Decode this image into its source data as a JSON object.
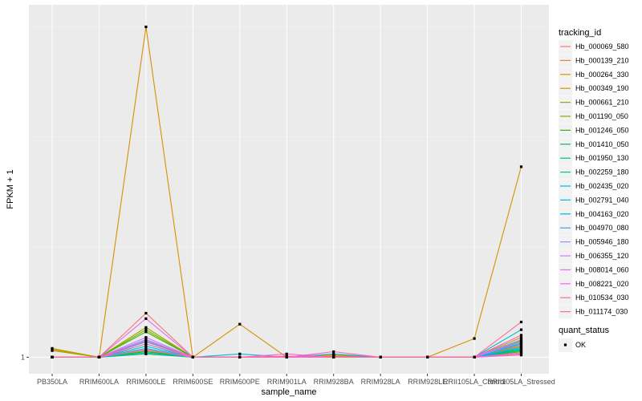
{
  "chart_data": {
    "type": "line",
    "xlabel": "sample_name",
    "ylabel": "FPKM + 1",
    "y_tick_labels": [
      "1"
    ],
    "categories": [
      "PB350LA",
      "RRIM600LA",
      "RRIM600LE",
      "RRIM600SE",
      "RRIM600PE",
      "RRIM901LA",
      "RRIM928BA",
      "RRIM928LA",
      "RRIM928LE",
      "RRII105LA_Control",
      "RRII105LA_Stressed"
    ],
    "legend": {
      "position": "right",
      "color_title": "tracking_id",
      "shape_title": "quant_status",
      "shape_entries": [
        "OK"
      ]
    },
    "series": [
      {
        "name": "Hb_000069_580",
        "color": "#F8766D",
        "values": [
          1.0,
          1.0,
          1.4,
          1.0,
          1.0,
          1.0,
          1.02,
          1.0,
          1.0,
          1.0,
          1.11
        ]
      },
      {
        "name": "Hb_000139_210",
        "color": "#EA8331",
        "values": [
          1.0,
          1.0,
          1.05,
          1.0,
          1.0,
          1.0,
          1.01,
          1.0,
          1.0,
          1.0,
          1.03
        ]
      },
      {
        "name": "Hb_000264_330",
        "color": "#D89000",
        "values": [
          1.07,
          1.0,
          4.0,
          1.0,
          1.3,
          1.0,
          1.0,
          1.0,
          1.0,
          1.17,
          2.73
        ]
      },
      {
        "name": "Hb_000349_190",
        "color": "#C09B00",
        "values": [
          1.08,
          1.0,
          1.06,
          1.0,
          1.0,
          1.0,
          1.02,
          1.0,
          1.0,
          1.0,
          1.1
        ]
      },
      {
        "name": "Hb_000661_210",
        "color": "#A3A500",
        "values": [
          1.06,
          1.0,
          1.27,
          1.0,
          1.0,
          1.0,
          1.0,
          1.0,
          1.0,
          1.0,
          1.18
        ]
      },
      {
        "name": "Hb_001190_050",
        "color": "#7CAE00",
        "values": [
          1.0,
          1.0,
          1.25,
          1.0,
          1.0,
          1.0,
          1.0,
          1.0,
          1.0,
          1.0,
          1.15
        ]
      },
      {
        "name": "Hb_001246_050",
        "color": "#39B600",
        "values": [
          1.0,
          1.0,
          1.23,
          1.0,
          1.0,
          1.0,
          1.0,
          1.0,
          1.0,
          1.0,
          1.05
        ]
      },
      {
        "name": "Hb_001410_050",
        "color": "#00BB4E",
        "values": [
          1.0,
          1.0,
          1.05,
          1.0,
          1.0,
          1.0,
          1.0,
          1.0,
          1.0,
          1.0,
          1.07
        ]
      },
      {
        "name": "Hb_001950_130",
        "color": "#00BF7D",
        "values": [
          1.0,
          1.0,
          1.03,
          1.0,
          1.0,
          1.0,
          1.0,
          1.0,
          1.0,
          1.0,
          1.06
        ]
      },
      {
        "name": "Hb_002259_180",
        "color": "#00C1A3",
        "values": [
          1.0,
          1.0,
          1.04,
          1.0,
          1.0,
          1.0,
          1.0,
          1.0,
          1.0,
          1.0,
          1.08
        ]
      },
      {
        "name": "Hb_002435_020",
        "color": "#00BFC4",
        "values": [
          1.0,
          1.0,
          1.08,
          1.0,
          1.0,
          1.0,
          1.0,
          1.0,
          1.0,
          1.0,
          1.25
        ]
      },
      {
        "name": "Hb_002791_040",
        "color": "#00BAE0",
        "values": [
          1.0,
          1.0,
          1.1,
          1.0,
          1.03,
          1.0,
          1.03,
          1.0,
          1.0,
          1.0,
          1.12
        ]
      },
      {
        "name": "Hb_004163_020",
        "color": "#00B0F6",
        "values": [
          1.0,
          1.0,
          1.12,
          1.0,
          1.0,
          1.0,
          1.0,
          1.0,
          1.0,
          1.0,
          1.09
        ]
      },
      {
        "name": "Hb_004970_080",
        "color": "#35A2FF",
        "values": [
          1.0,
          1.0,
          1.14,
          1.0,
          1.0,
          1.0,
          1.0,
          1.0,
          1.0,
          1.0,
          1.13
        ]
      },
      {
        "name": "Hb_005946_180",
        "color": "#9590FF",
        "values": [
          1.0,
          1.0,
          1.16,
          1.0,
          1.0,
          1.0,
          1.0,
          1.0,
          1.0,
          1.0,
          1.14
        ]
      },
      {
        "name": "Hb_006355_120",
        "color": "#C77CFF",
        "values": [
          1.0,
          1.0,
          1.18,
          1.0,
          1.0,
          1.0,
          1.0,
          1.0,
          1.0,
          1.0,
          1.16
        ]
      },
      {
        "name": "Hb_008014_060",
        "color": "#E76BF3",
        "values": [
          1.0,
          1.0,
          1.35,
          1.0,
          1.0,
          1.0,
          1.0,
          1.0,
          1.0,
          1.0,
          1.04
        ]
      },
      {
        "name": "Hb_008221_020",
        "color": "#FA62DB",
        "values": [
          1.0,
          1.0,
          1.07,
          1.0,
          1.0,
          1.03,
          1.0,
          1.0,
          1.0,
          1.0,
          1.02
        ]
      },
      {
        "name": "Hb_010534_030",
        "color": "#FF62BC",
        "values": [
          1.0,
          1.0,
          1.15,
          1.0,
          1.0,
          1.0,
          1.05,
          1.0,
          1.0,
          1.0,
          1.2
        ]
      },
      {
        "name": "Hb_011174_030",
        "color": "#FF6C91",
        "values": [
          1.0,
          1.0,
          1.12,
          1.0,
          1.0,
          1.01,
          1.0,
          1.0,
          1.0,
          1.0,
          1.32
        ]
      }
    ],
    "ylim": [
      0.85,
      4.2
    ],
    "grid": true,
    "background": "#EBEBEB"
  }
}
